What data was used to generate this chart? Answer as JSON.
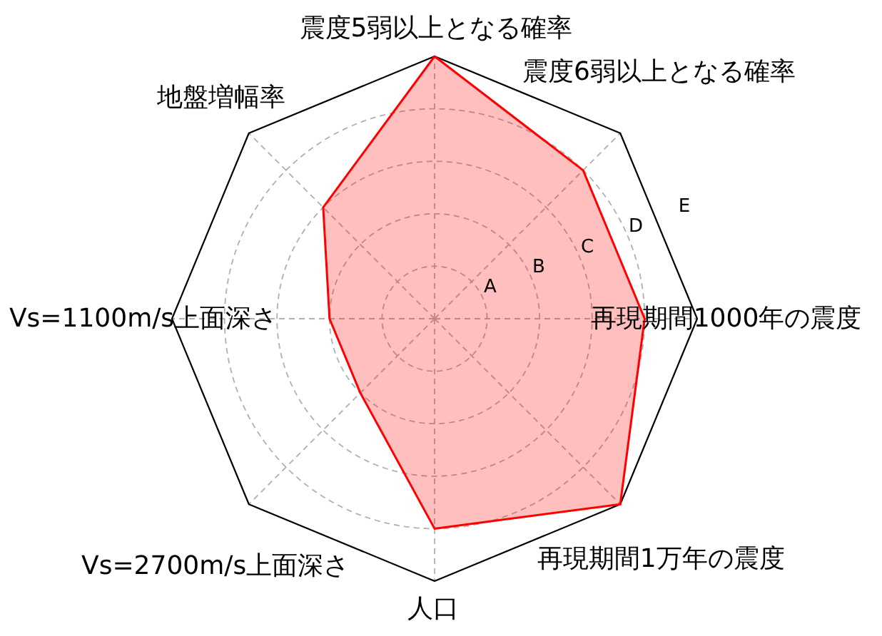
{
  "chart_data": {
    "type": "radar",
    "categories": [
      "震度5弱以上となる確率",
      "震度6弱以上となる確率",
      "再現期間1000年の震度",
      "再現期間1万年の震度",
      "人口",
      "Vs=2700m/s上面深さ",
      "Vs=1100m/s上面深さ",
      "地盤増幅率"
    ],
    "series": [
      {
        "color": "#ff0000",
        "values": [
          5,
          4,
          4,
          5,
          4,
          2,
          2,
          3
        ]
      }
    ],
    "ylim": [
      0,
      5
    ],
    "yticks": [
      {
        "value": 1,
        "label": "A"
      },
      {
        "value": 2,
        "label": "B"
      },
      {
        "value": 3,
        "label": "C"
      },
      {
        "value": 4,
        "label": "D"
      },
      {
        "value": 5,
        "label": "E"
      }
    ],
    "grid": true,
    "line_style": "solid"
  }
}
